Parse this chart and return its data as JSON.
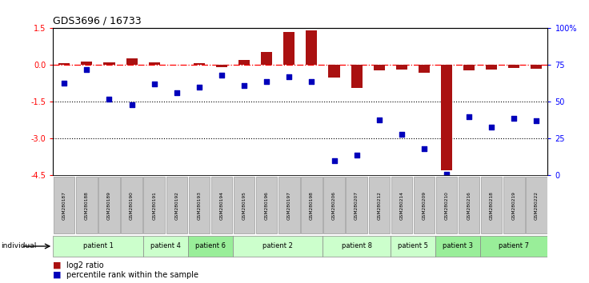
{
  "title": "GDS3696 / 16733",
  "samples": [
    "GSM280187",
    "GSM280188",
    "GSM280189",
    "GSM280190",
    "GSM280191",
    "GSM280192",
    "GSM280193",
    "GSM280194",
    "GSM280195",
    "GSM280196",
    "GSM280197",
    "GSM280198",
    "GSM280206",
    "GSM280207",
    "GSM280212",
    "GSM280214",
    "GSM280209",
    "GSM280210",
    "GSM280216",
    "GSM280218",
    "GSM280219",
    "GSM280222"
  ],
  "log2_ratio": [
    0.08,
    0.15,
    0.12,
    0.28,
    0.12,
    0.02,
    0.07,
    -0.07,
    0.22,
    0.52,
    1.35,
    1.42,
    -0.52,
    -0.92,
    -0.22,
    -0.18,
    -0.32,
    -4.3,
    -0.22,
    -0.18,
    -0.13,
    -0.16
  ],
  "percentile_rank": [
    63,
    72,
    52,
    48,
    62,
    56,
    60,
    68,
    61,
    64,
    67,
    64,
    10,
    14,
    38,
    28,
    18,
    1,
    40,
    33,
    39,
    37
  ],
  "groups": [
    {
      "label": "patient 1",
      "start": 0,
      "end": 4,
      "color": "#ccffcc"
    },
    {
      "label": "patient 4",
      "start": 4,
      "end": 6,
      "color": "#ccffcc"
    },
    {
      "label": "patient 6",
      "start": 6,
      "end": 8,
      "color": "#99ee99"
    },
    {
      "label": "patient 2",
      "start": 8,
      "end": 12,
      "color": "#ccffcc"
    },
    {
      "label": "patient 8",
      "start": 12,
      "end": 15,
      "color": "#ccffcc"
    },
    {
      "label": "patient 5",
      "start": 15,
      "end": 17,
      "color": "#ccffcc"
    },
    {
      "label": "patient 3",
      "start": 17,
      "end": 19,
      "color": "#99ee99"
    },
    {
      "label": "patient 7",
      "start": 19,
      "end": 22,
      "color": "#99ee99"
    }
  ],
  "ylim": [
    -4.5,
    1.5
  ],
  "right_ylim": [
    0,
    100
  ],
  "bar_color": "#aa1111",
  "dot_color": "#0000bb",
  "hline_y": 0.0,
  "dotted_lines": [
    -1.5,
    -3.0
  ],
  "left_ticks": [
    1.5,
    0.0,
    -1.5,
    -3.0,
    -4.5
  ],
  "right_ticks": [
    0,
    25,
    50,
    75,
    100
  ],
  "right_tick_labels": [
    "0",
    "25",
    "50",
    "75",
    "100%"
  ],
  "sample_box_color": "#c8c8c8",
  "sample_box_edge": "#999999"
}
